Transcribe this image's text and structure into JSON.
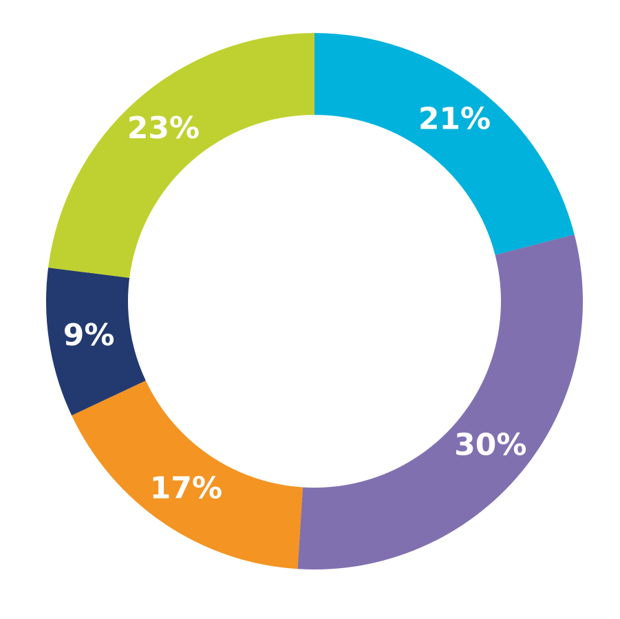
{
  "chart_data": {
    "type": "donut",
    "values": [
      21,
      30,
      17,
      9,
      23
    ],
    "value_labels": [
      "21%",
      "30%",
      "17%",
      "9%",
      "23%"
    ],
    "colors": [
      "#00b2dc",
      "#8170b0",
      "#f39423",
      "#233a70",
      "#bfd130"
    ]
  }
}
